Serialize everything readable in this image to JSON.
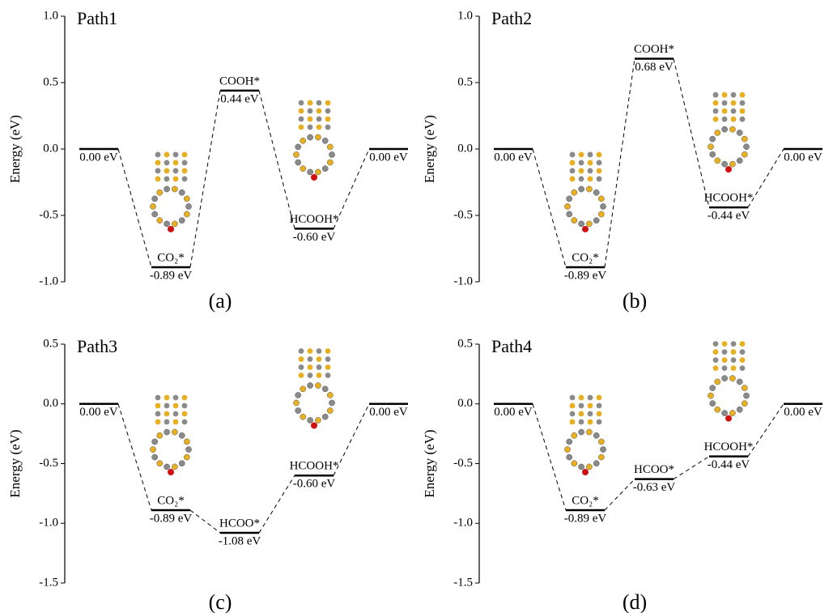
{
  "chart_data": [
    {
      "type": "energy_profile",
      "title": "Path1",
      "panel_label": "(a)",
      "y_label": "Energy (eV)",
      "categories": [
        null,
        "CO₂*",
        "COOH*",
        "HCOOH*",
        null
      ],
      "values": [
        0,
        -0.89,
        0.44,
        -0.6,
        0
      ],
      "value_labels": [
        "0.00 eV",
        "-0.89 eV",
        "0.44 eV",
        "-0.60 eV",
        "0.00 eV"
      ],
      "ylim": [
        -1,
        1
      ],
      "yticks": [
        {
          "value": -1,
          "label": "-1.0"
        },
        -0.5,
        {
          "value": 0,
          "label": "0.0"
        },
        0.5,
        {
          "value": 1,
          "label": "1.0"
        }
      ]
    },
    {
      "type": "energy_profile",
      "title": "Path2",
      "panel_label": "(b)",
      "y_label": "Energy (eV)",
      "categories": [
        null,
        "CO₂*",
        "COOH*",
        "HCOOH*",
        null
      ],
      "values": [
        0,
        -0.89,
        0.68,
        -0.44,
        0
      ],
      "value_labels": [
        "0.00 eV",
        "-0.89 eV",
        "0.68 eV",
        "-0.44 eV",
        "0.00 eV"
      ],
      "ylim": [
        -1,
        1
      ],
      "yticks": [
        {
          "value": -1,
          "label": "-1.0"
        },
        -0.5,
        {
          "value": 0,
          "label": "0.0"
        },
        0.5,
        {
          "value": 1,
          "label": "1.0"
        }
      ]
    },
    {
      "type": "energy_profile",
      "title": "Path3",
      "panel_label": "(c)",
      "y_label": "Energy (eV)",
      "categories": [
        null,
        "CO₂*",
        "HCOO*",
        "HCOOH*",
        null
      ],
      "values": [
        0,
        -0.89,
        -1.08,
        -0.6,
        0
      ],
      "value_labels": [
        "0.00 eV",
        "-0.89 eV",
        "-1.08 eV",
        "-0.60 eV",
        "0.00 eV"
      ],
      "ylim": [
        -1.5,
        0.5
      ],
      "yticks": [
        -1.5,
        {
          "value": -1,
          "label": "-1.0"
        },
        -0.5,
        {
          "value": 0,
          "label": "0.0"
        },
        0.5
      ]
    },
    {
      "type": "energy_profile",
      "title": "Path4",
      "panel_label": "(d)",
      "y_label": "Energy (eV)",
      "categories": [
        null,
        "CO₂*",
        "HCOO*",
        "HCOOH*",
        null
      ],
      "values": [
        0,
        -0.89,
        -0.63,
        -0.44,
        0
      ],
      "value_labels": [
        "0.00 eV",
        "-0.89 eV",
        "-0.63 eV",
        "-0.44 eV",
        "0.00 eV"
      ],
      "ylim": [
        -1.5,
        0.5
      ],
      "yticks": [
        -1.5,
        {
          "value": -1,
          "label": "-1.0"
        },
        -0.5,
        {
          "value": 0,
          "label": "0.0"
        },
        0.5
      ]
    }
  ]
}
